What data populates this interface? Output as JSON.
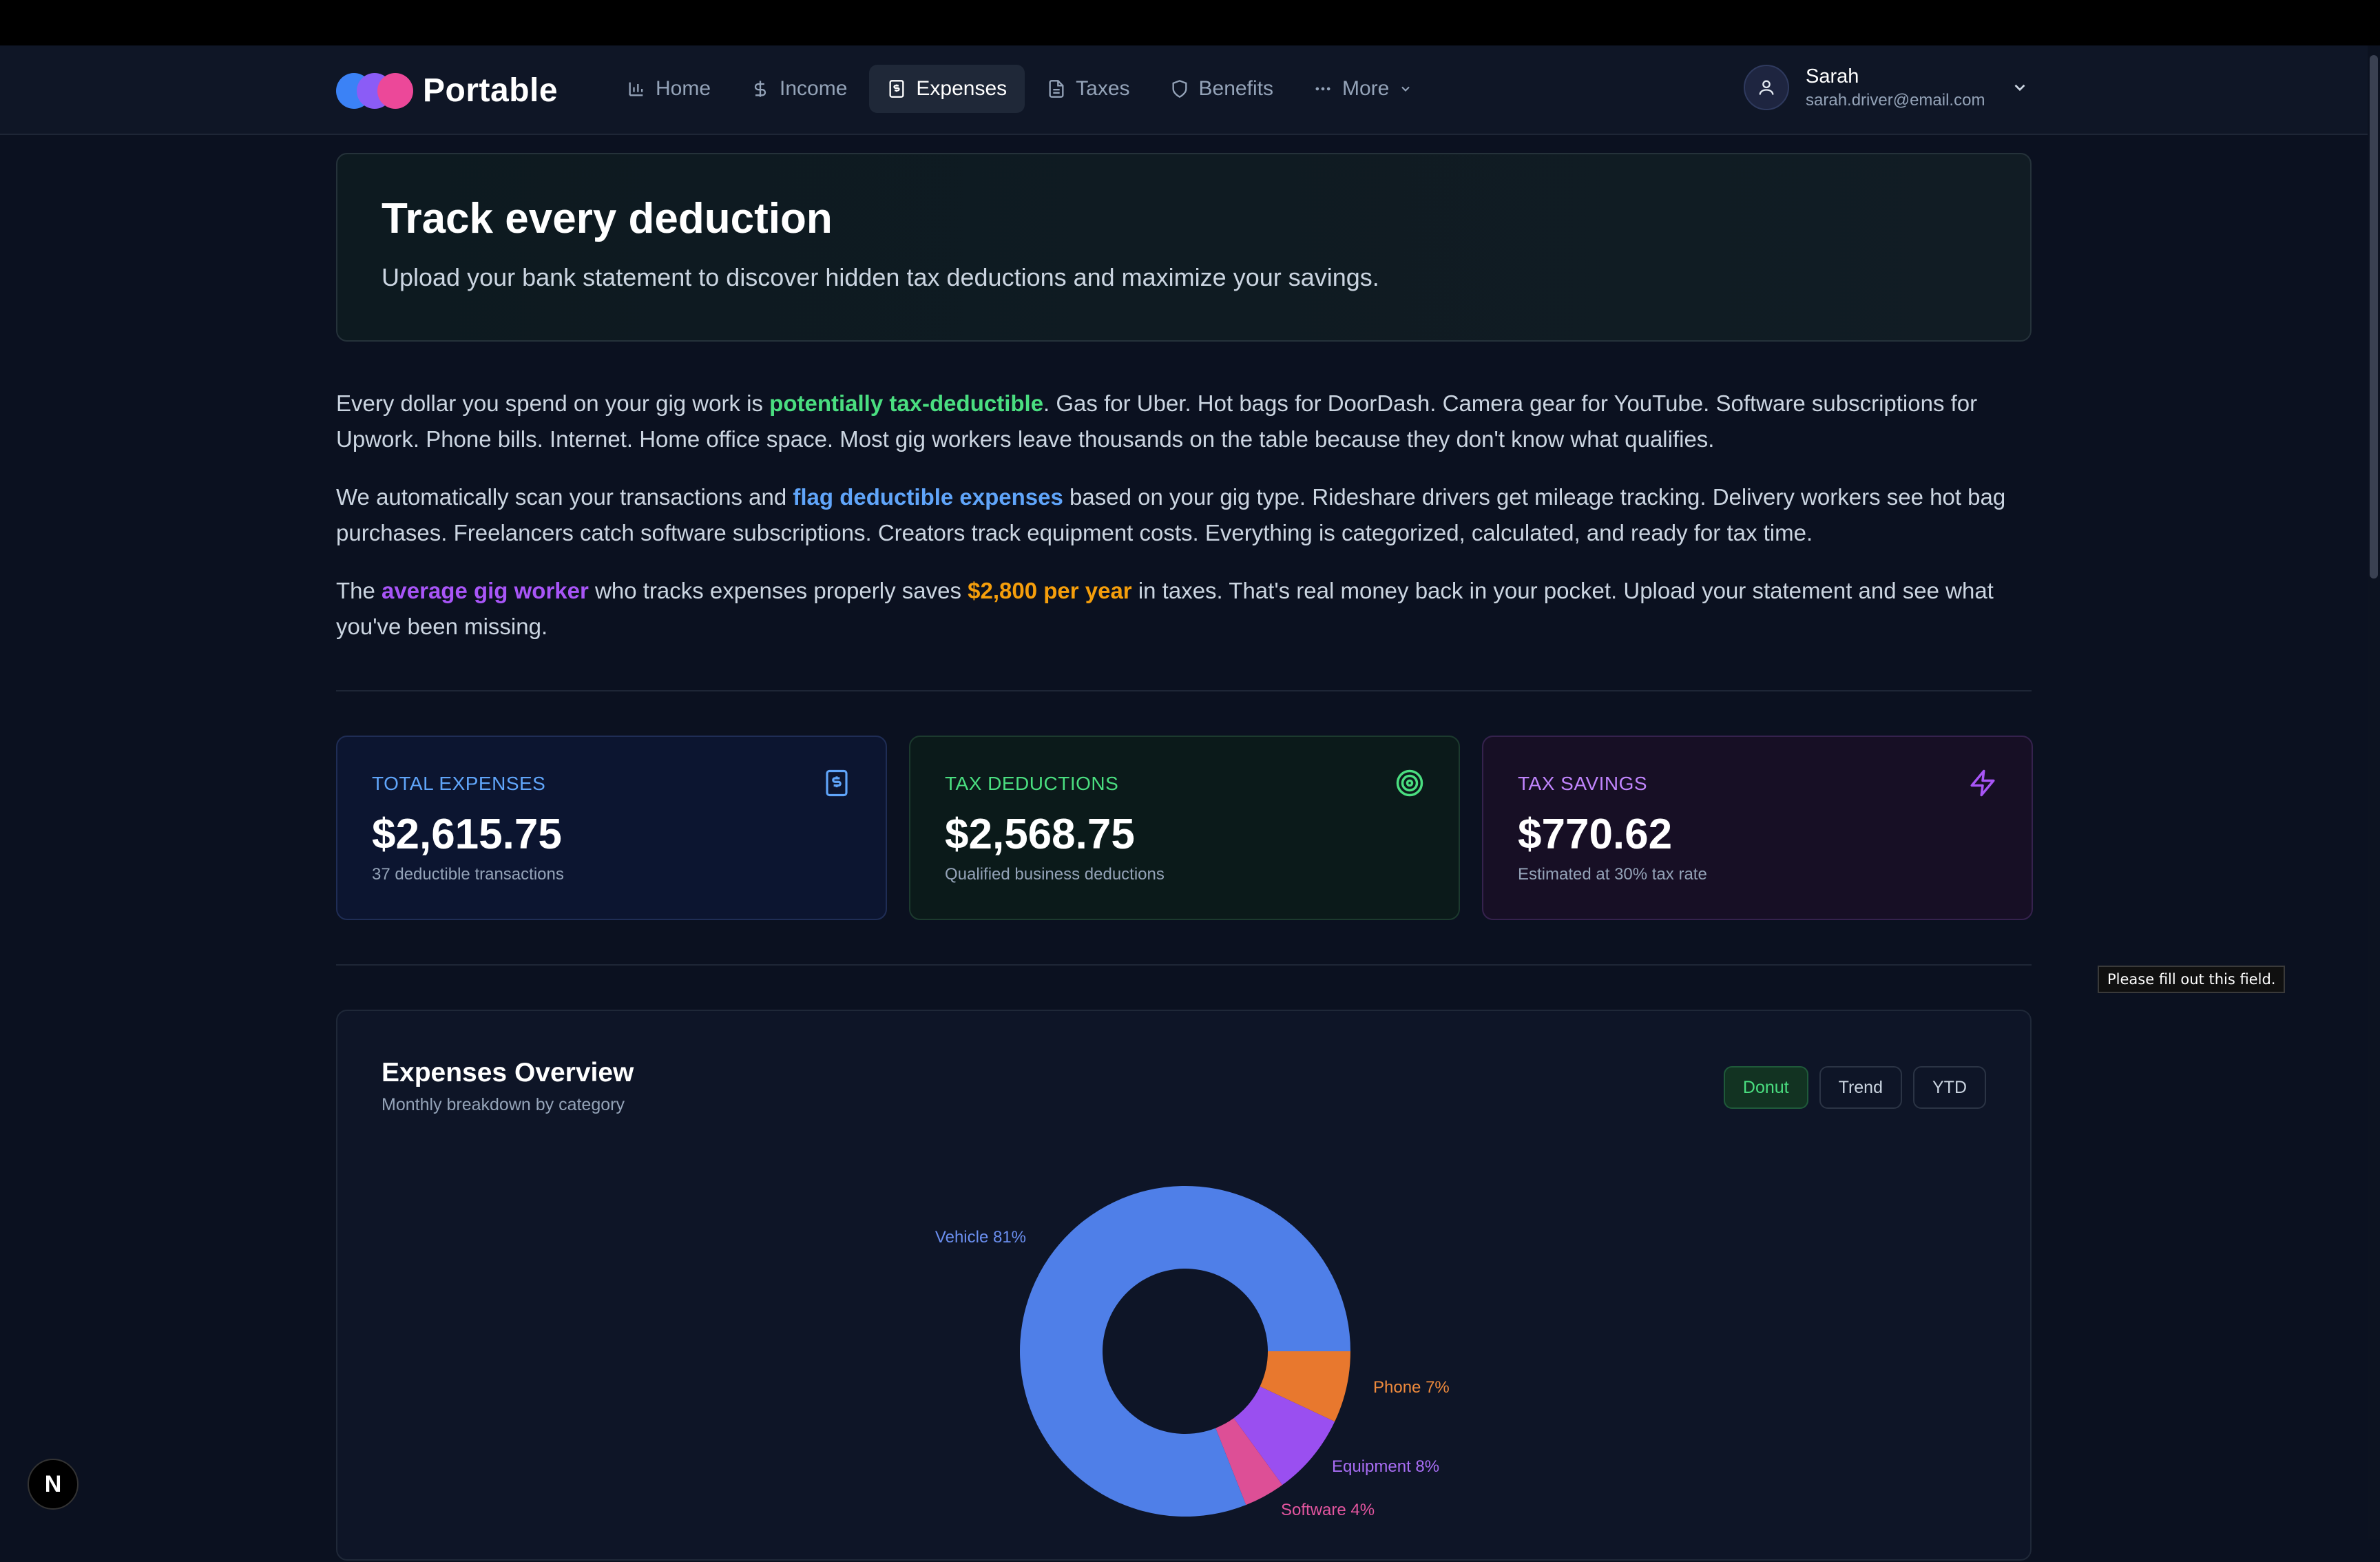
{
  "app": {
    "brand": "Portable"
  },
  "nav": {
    "items": [
      {
        "label": "Home",
        "icon": "bar-chart-icon"
      },
      {
        "label": "Income",
        "icon": "dollar-icon"
      },
      {
        "label": "Expenses",
        "icon": "receipt-icon",
        "active": true
      },
      {
        "label": "Taxes",
        "icon": "document-icon"
      },
      {
        "label": "Benefits",
        "icon": "shield-icon"
      },
      {
        "label": "More",
        "icon": "ellipsis-icon"
      }
    ]
  },
  "user": {
    "name": "Sarah",
    "email": "sarah.driver@email.com"
  },
  "hero": {
    "title": "Track every deduction",
    "subtitle": "Upload your bank statement to discover hidden tax deductions and maximize your savings."
  },
  "paragraphs": {
    "p1": {
      "a": "Every dollar you spend on your gig work is ",
      "highlight": "potentially tax-deductible",
      "b": ". Gas for Uber. Hot bags for DoorDash. Camera gear for YouTube. Software subscriptions for Upwork. Phone bills. Internet. Home office space. Most gig workers leave thousands on the table because they don't know what qualifies."
    },
    "p2": {
      "a": "We automatically scan your transactions and ",
      "highlight": "flag deductible expenses",
      "b": " based on your gig type. Rideshare drivers get mileage tracking. Delivery workers see hot bag purchases. Freelancers catch software subscriptions. Creators track equipment costs. Everything is categorized, calculated, and ready for tax time."
    },
    "p3": {
      "a": "The ",
      "highlight1": "average gig worker",
      "b": " who tracks expenses properly saves ",
      "highlight2": "$2,800 per year",
      "c": " in taxes. That's real money back in your pocket. Upload your statement and see what you've been missing."
    }
  },
  "stats": {
    "total": {
      "label": "TOTAL EXPENSES",
      "value": "$2,615.75",
      "sub": "37 deductible transactions"
    },
    "deductions": {
      "label": "TAX DEDUCTIONS",
      "value": "$2,568.75",
      "sub": "Qualified business deductions"
    },
    "savings": {
      "label": "TAX SAVINGS",
      "value": "$770.62",
      "sub": "Estimated at 30% tax rate"
    }
  },
  "tooltip": "Please fill out this field.",
  "overview": {
    "title": "Expenses Overview",
    "subtitle": "Monthly breakdown by category",
    "tabs": [
      "Donut",
      "Trend",
      "YTD"
    ],
    "active_tab": "Donut"
  },
  "chart_data": {
    "type": "pie",
    "style": "donut",
    "categories": [
      "Vehicle",
      "Phone",
      "Equipment",
      "Software"
    ],
    "values": [
      81,
      7,
      8,
      4
    ],
    "labels": [
      "Vehicle 81%",
      "Phone 7%",
      "Equipment 8%",
      "Software 4%"
    ],
    "colors": [
      "#4f7fe8",
      "#e8782e",
      "#9a4ff0",
      "#dd4f96"
    ],
    "label_colors": [
      "#6b8ff0",
      "#ef8a3c",
      "#a86df4",
      "#e3559f"
    ]
  },
  "dev_badge": "N",
  "colors": {
    "background": "#0b1120",
    "green": "#4ade80",
    "blue": "#60a5fa",
    "purple": "#a855f7",
    "orange": "#f59e0b"
  }
}
